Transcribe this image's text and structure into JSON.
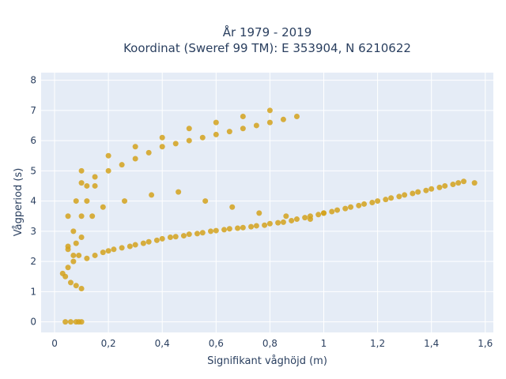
{
  "chart_data": {
    "type": "scatter",
    "title_line1": "År 1979 - 2019",
    "title_line2": "Koordinat (Sweref 99 TM): E 353904, N 6210622",
    "xlabel": "Signifikant våghöjd (m)",
    "ylabel": "Vågperiod (s)",
    "xlim": [
      -0.05,
      1.63
    ],
    "ylim": [
      -0.35,
      8.25
    ],
    "xticks": [
      0,
      0.2,
      0.4,
      0.6,
      0.8,
      1,
      1.2,
      1.4,
      1.6
    ],
    "xtick_labels": [
      "0",
      "0,2",
      "0,4",
      "0,6",
      "0,8",
      "1",
      "1,2",
      "1,4",
      "1,6"
    ],
    "yticks": [
      0,
      1,
      2,
      3,
      4,
      5,
      6,
      7,
      8
    ],
    "ytick_labels": [
      "0",
      "1",
      "2",
      "3",
      "4",
      "5",
      "6",
      "7",
      "8"
    ],
    "grid": true,
    "marker_color": "#d4a21c",
    "plot_bg": "#e5ecf6",
    "series": [
      {
        "x": [
          0.04,
          0.06,
          0.08,
          0.1,
          0.03,
          0.05,
          0.07,
          0.09,
          0.12,
          0.15,
          0.18,
          0.2,
          0.22,
          0.25,
          0.28,
          0.3,
          0.33,
          0.35,
          0.38,
          0.4,
          0.43,
          0.45,
          0.48,
          0.5,
          0.53,
          0.55,
          0.58,
          0.6,
          0.63,
          0.65,
          0.68,
          0.7,
          0.73,
          0.75,
          0.78,
          0.8,
          0.83,
          0.85,
          0.88,
          0.9,
          0.93,
          0.95,
          0.98,
          1.0,
          1.03,
          1.05,
          1.08,
          1.1,
          1.13,
          1.15,
          1.18,
          1.2,
          1.23,
          1.25,
          1.28,
          1.3,
          1.33,
          1.35,
          1.38,
          1.4,
          1.43,
          1.45,
          1.48,
          1.5,
          1.52,
          1.56,
          0.1,
          0.15,
          0.2,
          0.25,
          0.3,
          0.35,
          0.4,
          0.45,
          0.5,
          0.55,
          0.6,
          0.65,
          0.7,
          0.75,
          0.8,
          0.85,
          0.9,
          0.05,
          0.08,
          0.12,
          0.1,
          0.2,
          0.3,
          0.4,
          0.5,
          0.6,
          0.7,
          0.8,
          0.14,
          0.18,
          0.26,
          0.36,
          0.46,
          0.56,
          0.66,
          0.76,
          0.86,
          0.95,
          1.0,
          0.04,
          0.06,
          0.08,
          0.09,
          0.1,
          0.05,
          0.07,
          0.1,
          0.12,
          0.15,
          0.1,
          0.08,
          0.05,
          0.07
        ],
        "y": [
          1.5,
          1.3,
          1.2,
          1.1,
          1.6,
          1.8,
          2.0,
          2.2,
          2.1,
          2.2,
          2.3,
          2.35,
          2.4,
          2.45,
          2.5,
          2.55,
          2.6,
          2.65,
          2.7,
          2.75,
          2.8,
          2.82,
          2.85,
          2.9,
          2.92,
          2.95,
          3.0,
          3.02,
          3.05,
          3.08,
          3.1,
          3.12,
          3.15,
          3.18,
          3.2,
          3.25,
          3.28,
          3.3,
          3.35,
          3.4,
          3.45,
          3.5,
          3.55,
          3.6,
          3.65,
          3.7,
          3.75,
          3.8,
          3.85,
          3.9,
          3.95,
          4.0,
          4.05,
          4.1,
          4.15,
          4.2,
          4.25,
          4.3,
          4.35,
          4.4,
          4.45,
          4.5,
          4.55,
          4.6,
          4.65,
          4.6,
          4.6,
          4.8,
          5.0,
          5.2,
          5.4,
          5.6,
          5.8,
          5.9,
          6.0,
          6.1,
          6.2,
          6.3,
          6.4,
          6.5,
          6.6,
          6.7,
          6.8,
          3.5,
          4.0,
          4.5,
          5.0,
          5.5,
          5.8,
          6.1,
          6.4,
          6.6,
          6.8,
          7.0,
          3.5,
          3.8,
          4.0,
          4.2,
          4.3,
          4.0,
          3.8,
          3.6,
          3.5,
          3.4,
          3.6,
          0,
          0,
          0,
          0,
          0,
          2.5,
          3.0,
          3.5,
          4.0,
          4.5,
          2.8,
          2.6,
          2.4,
          2.2
        ]
      }
    ]
  }
}
